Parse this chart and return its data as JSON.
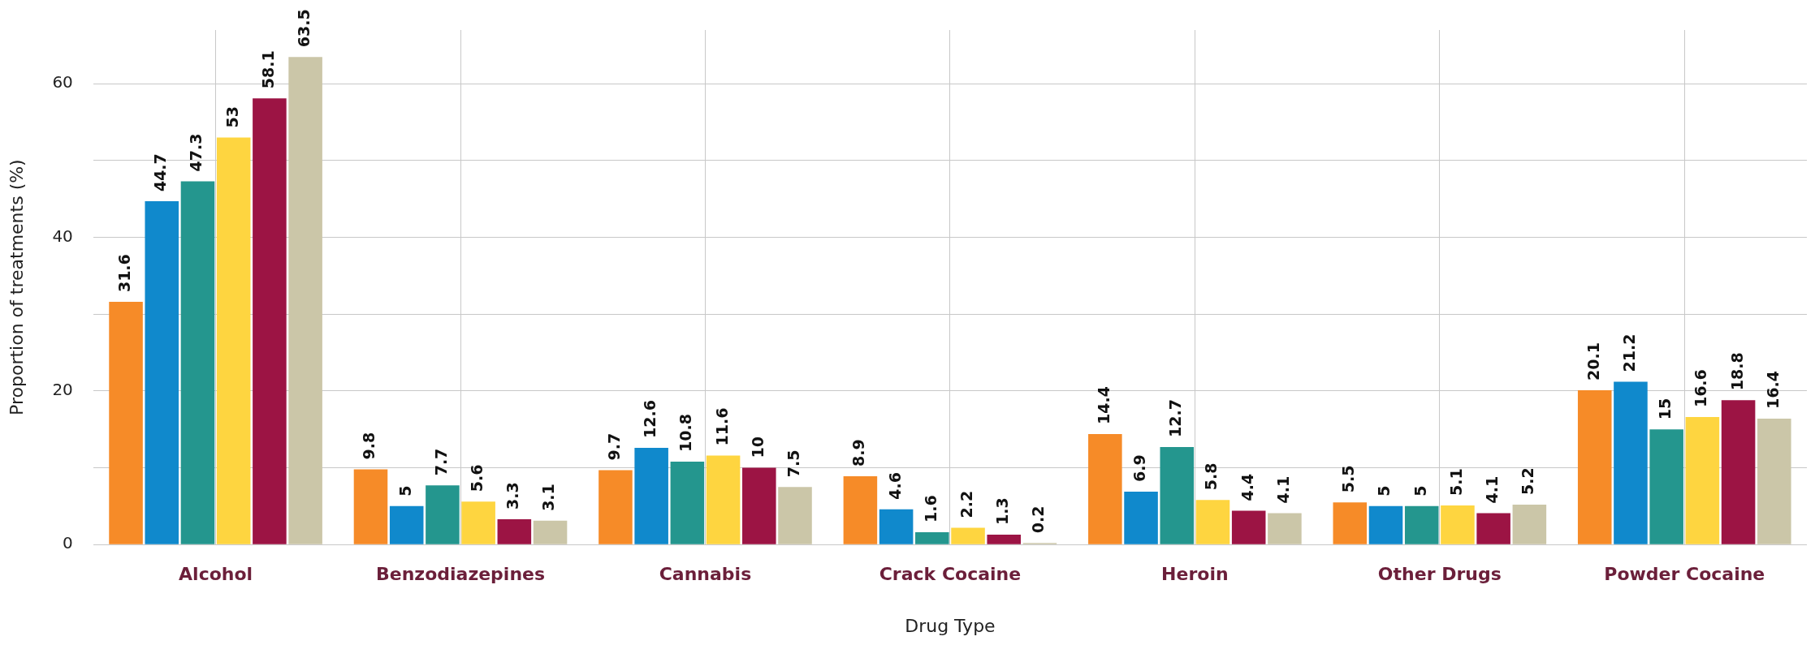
{
  "chart_data": {
    "type": "bar",
    "xlabel": "Drug Type",
    "ylabel": "Proportion of treatments (%)",
    "categories": [
      "Alcohol",
      "Benzodiazepines",
      "Cannabis",
      "Crack Cocaine",
      "Heroin",
      "Other Drugs",
      "Powder Cocaine"
    ],
    "series": [
      {
        "color": "#f68b28",
        "values": [
          31.6,
          9.8,
          9.7,
          8.9,
          14.4,
          5.5,
          20.1
        ]
      },
      {
        "color": "#1089cc",
        "values": [
          44.7,
          5,
          12.6,
          4.6,
          6.9,
          5,
          21.2
        ]
      },
      {
        "color": "#24968e",
        "values": [
          47.3,
          7.7,
          10.8,
          1.6,
          12.7,
          5,
          15
        ]
      },
      {
        "color": "#fed540",
        "values": [
          53,
          5.6,
          11.6,
          2.2,
          5.8,
          5.1,
          16.6
        ]
      },
      {
        "color": "#9c1444",
        "values": [
          58.1,
          3.3,
          10,
          1.3,
          4.4,
          4.1,
          18.8
        ]
      },
      {
        "color": "#cbc6a8",
        "values": [
          63.5,
          3.1,
          7.5,
          0.2,
          4.1,
          5.2,
          16.4
        ]
      }
    ],
    "ylim": [
      0,
      67
    ],
    "yticks": [
      0,
      {
        "value": 10,
        "label": null
      },
      20,
      {
        "value": 30,
        "label": null
      },
      40,
      {
        "value": 50,
        "label": null
      },
      60
    ],
    "grid": true,
    "legend": false,
    "data_labels": true
  }
}
